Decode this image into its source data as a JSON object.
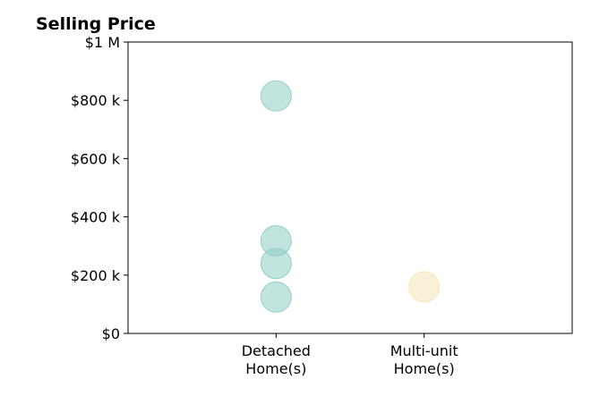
{
  "chart_data": {
    "type": "scatter",
    "title": "Selling Price",
    "xlabel": "",
    "ylabel": "",
    "categories": [
      "Detached\nHome(s)",
      "Multi-unit\nHome(s)"
    ],
    "xlim": [
      0,
      3
    ],
    "ylim": [
      0,
      1000000
    ],
    "y_ticks": [
      {
        "value": 0,
        "label": "$0"
      },
      {
        "value": 200000,
        "label": "$200 k"
      },
      {
        "value": 400000,
        "label": "$400 k"
      },
      {
        "value": 600000,
        "label": "$600 k"
      },
      {
        "value": 800000,
        "label": "$800 k"
      },
      {
        "value": 1000000,
        "label": "$1 M"
      }
    ],
    "grid": false,
    "series": [
      {
        "category": "Detached\nHome(s)",
        "color": "#8ecdc5",
        "values": [
          815000,
          318000,
          240000,
          125000
        ]
      },
      {
        "category": "Multi-unit\nHome(s)",
        "color": "#f6e3b8",
        "values": [
          160000
        ]
      }
    ]
  }
}
